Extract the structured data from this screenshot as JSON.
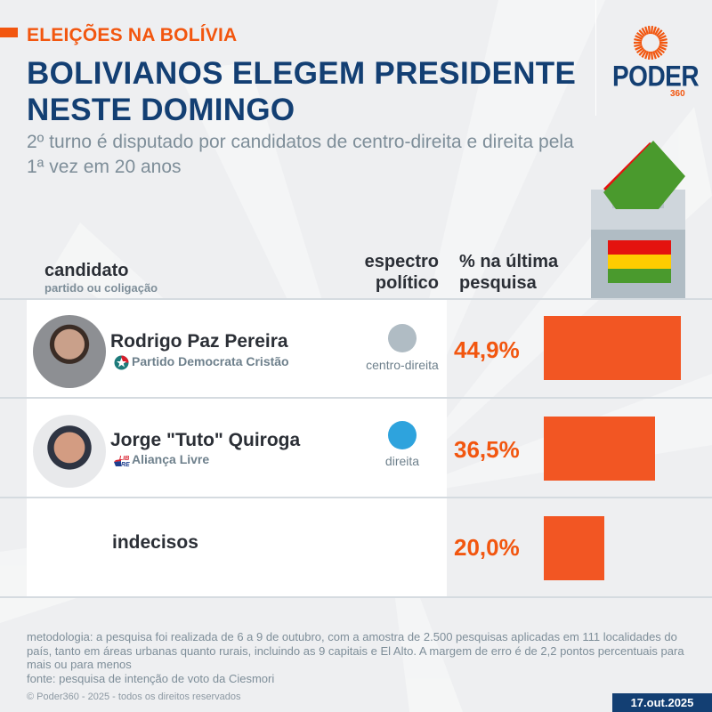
{
  "header": {
    "kicker": "ELEIÇÕES NA BOLÍVIA",
    "title_line1": "BOLIVIANOS ELEGEM PRESIDENTE",
    "title_line2": "NESTE DOMINGO",
    "subtitle": "2º turno é disputado por candidatos de centro-direita e direita pela 1ª vez em 20 anos"
  },
  "logo": {
    "word": "PODER",
    "number": "360",
    "icon": "sun-rays-icon"
  },
  "illustration": {
    "icon": "ballot-box-icon",
    "flag_colors": [
      "#e4130f",
      "#ffcc00",
      "#4a9a2d"
    ],
    "ballot_color": "#4a9a2d"
  },
  "columns": {
    "candidate": "candidato",
    "candidate_sub": "partido ou coligação",
    "spectrum_line1": "espectro",
    "spectrum_line2": "político",
    "pct_line1": "% na última",
    "pct_line2": "pesquisa"
  },
  "colors": {
    "accent": "#f2560f",
    "bar": "#f25623",
    "navy": "#133f73",
    "centro_direita": "#b0bcc4",
    "direita": "#2ea3dd"
  },
  "chart_data": {
    "type": "bar",
    "orientation": "horizontal",
    "title": "BOLIVIANOS ELEGEM PRESIDENTE NESTE DOMINGO",
    "ylabel": "% na última pesquisa",
    "categories": [
      "Rodrigo Paz Pereira",
      "Jorge \"Tuto\" Quiroga",
      "indecisos"
    ],
    "values": [
      44.9,
      36.5,
      20.0
    ],
    "value_labels": [
      "44,9%",
      "36,5%",
      "20,0%"
    ],
    "xlim": [
      0,
      45
    ],
    "rows": [
      {
        "name": "Rodrigo Paz Pereira",
        "party": "Partido Democrata Cristão",
        "party_icon": "pdc-star-icon",
        "spectrum": "centro-direita",
        "spectrum_color": "#b0bcc4",
        "value": 44.9,
        "label": "44,9%"
      },
      {
        "name": "Jorge \"Tuto\" Quiroga",
        "party": "Aliança Livre",
        "party_icon": "libre-logo-icon",
        "spectrum": "direita",
        "spectrum_color": "#2ea3dd",
        "value": 36.5,
        "label": "36,5%"
      },
      {
        "name": "indecisos",
        "party": "",
        "spectrum": "",
        "value": 20.0,
        "label": "20,0%"
      }
    ]
  },
  "footer": {
    "methodology": "metodologia: a pesquisa foi realizada de 6 a 9 de outubro, com a amostra de 2.500 pesquisas aplicadas em 111 localidades do país, tanto em áreas urbanas quanto rurais, incluindo as 9 capitais e El Alto. A margem de erro é de 2,2 pontos percentuais para mais ou para menos",
    "source": "fonte: pesquisa de intenção de voto da Ciesmori",
    "copyright": "© Poder360 - 2025 - todos os direitos reservados",
    "date": "17.out.2025"
  }
}
